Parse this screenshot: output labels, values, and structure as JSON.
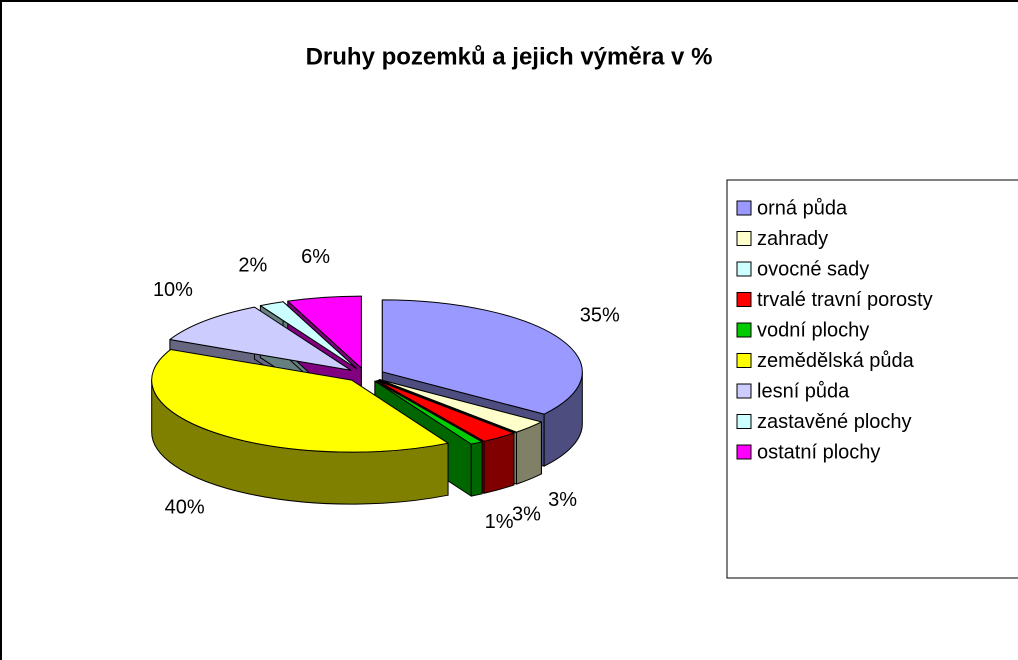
{
  "chart_data": {
    "type": "pie",
    "title": "Druhy pozemků a jejich výměra v %",
    "categories": [
      "orná půda",
      "zahrady",
      "ovocné sady",
      "trvalé travní porosty",
      "vodní plochy",
      "zemědělská půda",
      "lesní půda",
      "zastavěné plochy",
      "ostatní plochy"
    ],
    "values": [
      35,
      3,
      0,
      3,
      1,
      40,
      10,
      2,
      6
    ],
    "value_labels": [
      "35%",
      "3%",
      null,
      "3%",
      "1%",
      "40%",
      "10%",
      "2%",
      "6%"
    ],
    "colors": [
      "#9999ff",
      "#ffffcc",
      "#ccffff",
      "#ff0000",
      "#00cc00",
      "#ffff00",
      "#ccccff",
      "#ccffff",
      "#ff00ff"
    ],
    "legend": "right"
  }
}
